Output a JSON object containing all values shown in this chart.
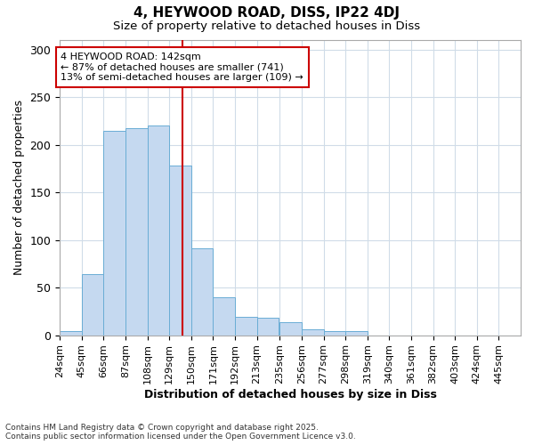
{
  "title1": "4, HEYWOOD ROAD, DISS, IP22 4DJ",
  "title2": "Size of property relative to detached houses in Diss",
  "xlabel": "Distribution of detached houses by size in Diss",
  "ylabel": "Number of detached properties",
  "bins": [
    "24sqm",
    "45sqm",
    "66sqm",
    "87sqm",
    "108sqm",
    "129sqm",
    "150sqm",
    "171sqm",
    "192sqm",
    "213sqm",
    "235sqm",
    "256sqm",
    "277sqm",
    "298sqm",
    "319sqm",
    "340sqm",
    "361sqm",
    "382sqm",
    "403sqm",
    "424sqm",
    "445sqm"
  ],
  "bin_edges": [
    24,
    45,
    66,
    87,
    108,
    129,
    150,
    171,
    192,
    213,
    235,
    256,
    277,
    298,
    319,
    340,
    361,
    382,
    403,
    424,
    445
  ],
  "values": [
    4,
    64,
    215,
    217,
    220,
    178,
    91,
    40,
    19,
    18,
    14,
    6,
    4,
    4,
    0,
    0,
    0,
    0,
    0,
    0,
    0
  ],
  "bar_color": "#c5d9f0",
  "bar_edge_color": "#6aadd5",
  "vline_x": 142,
  "vline_color": "#cc0000",
  "annotation_text": "4 HEYWOOD ROAD: 142sqm\n← 87% of detached houses are smaller (741)\n13% of semi-detached houses are larger (109) →",
  "annotation_box_color": "#ffffff",
  "annotation_box_edge": "#cc0000",
  "bg_color": "#ffffff",
  "plot_bg_color": "#ffffff",
  "grid_color": "#d0dce8",
  "ylim": [
    0,
    310
  ],
  "yticks": [
    0,
    50,
    100,
    150,
    200,
    250,
    300
  ],
  "footnote1": "Contains HM Land Registry data © Crown copyright and database right 2025.",
  "footnote2": "Contains public sector information licensed under the Open Government Licence v3.0."
}
